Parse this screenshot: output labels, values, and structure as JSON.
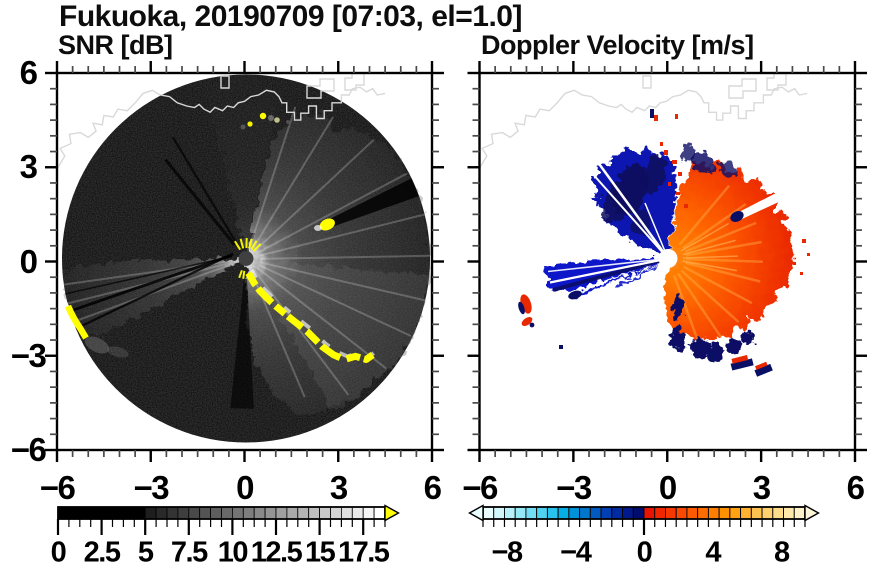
{
  "header": {
    "title": "Fukuoka, 20190709 [07:03, el=1.0]"
  },
  "panels": {
    "snr": {
      "title": "SNR [dB]"
    },
    "doppler": {
      "title": "Doppler Velocity [m/s]"
    }
  },
  "axes": {
    "x_tick_labels": [
      "−6",
      "−3",
      "0",
      "3",
      "6"
    ],
    "x_tick_values": [
      -6,
      -3,
      0,
      3,
      6
    ],
    "y_tick_labels": [
      "6",
      "3",
      "0",
      "−3",
      "−6"
    ],
    "y_tick_values": [
      6,
      3,
      0,
      -3,
      -6
    ],
    "x_range": [
      -6,
      6
    ],
    "y_range": [
      -6,
      6
    ],
    "major_tick_step": 3,
    "minor_tick_step": 0.5
  },
  "colorbars": {
    "snr": {
      "tick_labels": [
        "0",
        "2.5",
        "5",
        "7.5",
        "10",
        "12.5",
        "15",
        "17.5"
      ],
      "tick_values": [
        0,
        2.5,
        5,
        7.5,
        10,
        12.5,
        15,
        17.5
      ],
      "range": [
        0,
        18.75
      ],
      "segments": 30,
      "style": "grayscale ramp, solid black below 5 dB, white at maximum",
      "overflow_arrow_color": "#ffff00"
    },
    "doppler": {
      "tick_labels": [
        "−8",
        "−4",
        "0",
        "4",
        "8"
      ],
      "tick_values": [
        -8,
        -4,
        0,
        4,
        8
      ],
      "range": [
        -9.375,
        9.375
      ],
      "segments": 30,
      "segment_colors": [
        "#e8fcfd",
        "#d2f7fb",
        "#b6f0f9",
        "#97e8f7",
        "#74ddf4",
        "#4fd1f0",
        "#28c2ec",
        "#04aee4",
        "#0092d8",
        "#0075cc",
        "#005ac0",
        "#0040b2",
        "#002ba2",
        "#001a8e",
        "#000c6e",
        "#e81400",
        "#f02600",
        "#f63700",
        "#fb4900",
        "#ff5a00",
        "#ff6c00",
        "#ff7e00",
        "#ff9000",
        "#ffa214",
        "#ffb232",
        "#ffc250",
        "#ffd06e",
        "#ffdc8c",
        "#ffe8aa",
        "#fff2c8"
      ],
      "underflow_arrow_color": "#eafeff",
      "overflow_arrow_color": "#fdf6d8"
    }
  },
  "chart_data": [
    {
      "type": "heatmap",
      "title": "SNR [dB]",
      "suptitle": "Fukuoka, 20190709 [07:03, el=1.0]",
      "xlabel": "",
      "ylabel": "",
      "x_range": [
        -6,
        6
      ],
      "y_range": [
        -6,
        6
      ],
      "x_ticks": [
        -6,
        -3,
        0,
        3,
        6
      ],
      "y_ticks": [
        6,
        3,
        0,
        -3,
        -6
      ],
      "minor_tick_step": 0.5,
      "grid": false,
      "colorbar": {
        "ticks": [
          0,
          2.5,
          5,
          7.5,
          10,
          12.5,
          15,
          17.5
        ],
        "range": [
          0,
          18.75
        ],
        "colormap": "black-to-white grayscale with yellow overflow arrow"
      },
      "radar_center": [
        0.1,
        0.05
      ],
      "scan_radius": 5.9,
      "features": [
        "circular PPI scan area of radius ~5.9 centered at origin, mostly near-black (low SNR) with speckle noise",
        "bright high-SNR fan east and southeast of the radar, white near the center fading with range",
        "moderate gray echo fan pointing west-southwest reaching the scan edge",
        "narrow black shadow rays (beam blockage) through the bright fans, e.g. behind the clutter patch at (2.6, 1.1)",
        "saturated yellow ground-clutter chain running from the radar toward the southeast near (0,-0.5) to (4,-3.1)",
        "isolated yellow clutter patch at ~(2.6, 1.1) with a dark shadow extending outward",
        "yellow clutter arc on the western scan edge near (-5.7, -1.8)",
        "white coastline of the bay across the top (~y=5) with blocky harbor structures near (2,4.5)-(3.3,5.3)",
        "small bright point echoes (ships) just south of the coastline near (0.1,4.3), (0.55,4.55), (1.0,4.45)"
      ]
    },
    {
      "type": "heatmap",
      "title": "Doppler Velocity [m/s]",
      "suptitle": "Fukuoka, 20190709 [07:03, el=1.0]",
      "xlabel": "",
      "ylabel": "",
      "x_range": [
        -6,
        6
      ],
      "y_range": [
        -6,
        6
      ],
      "x_ticks": [
        -6,
        -3,
        0,
        3,
        6
      ],
      "y_ticks": [
        6,
        3,
        0,
        -3,
        -6
      ],
      "minor_tick_step": 0.5,
      "grid": false,
      "colorbar": {
        "ticks": [
          -8,
          -4,
          0,
          4,
          8
        ],
        "range": [
          -9.375,
          9.375
        ],
        "colormap": "cyan-blue-navy for negative, red-orange-yellow for positive, arrows both ends"
      },
      "radar_center": [
        0.1,
        0.05
      ],
      "features": [
        "white background; velocity shown only where echo exists",
        "dark blue / navy fan (toward radar, ~ -4 to -9 m/s) north-northwest of the radar up to ~3.5 range",
        "strong blue wedge due west of the radar reaching ~(-3.9, -0.5), cut by thin white rays",
        "large red-orange fan (away from radar, ~ +2 to +8 m/s) covering the eastern half, orange streaks near center, red speckled rim",
        "navy patches along the southern edge of the red fan (~(0.3,-2.6) to (2.9,-3.6))",
        "white notch with navy tip at ~(2.3, 1.3) (shadowed ray)",
        "isolated red/navy echo pair near (-4.5, -1.5) and (-4.5, -2.0)",
        "small red/navy specks below the coastline near (-0.5, 4.5)",
        "black coastline across the top with harbor structures; white dot at radar location"
      ]
    }
  ]
}
